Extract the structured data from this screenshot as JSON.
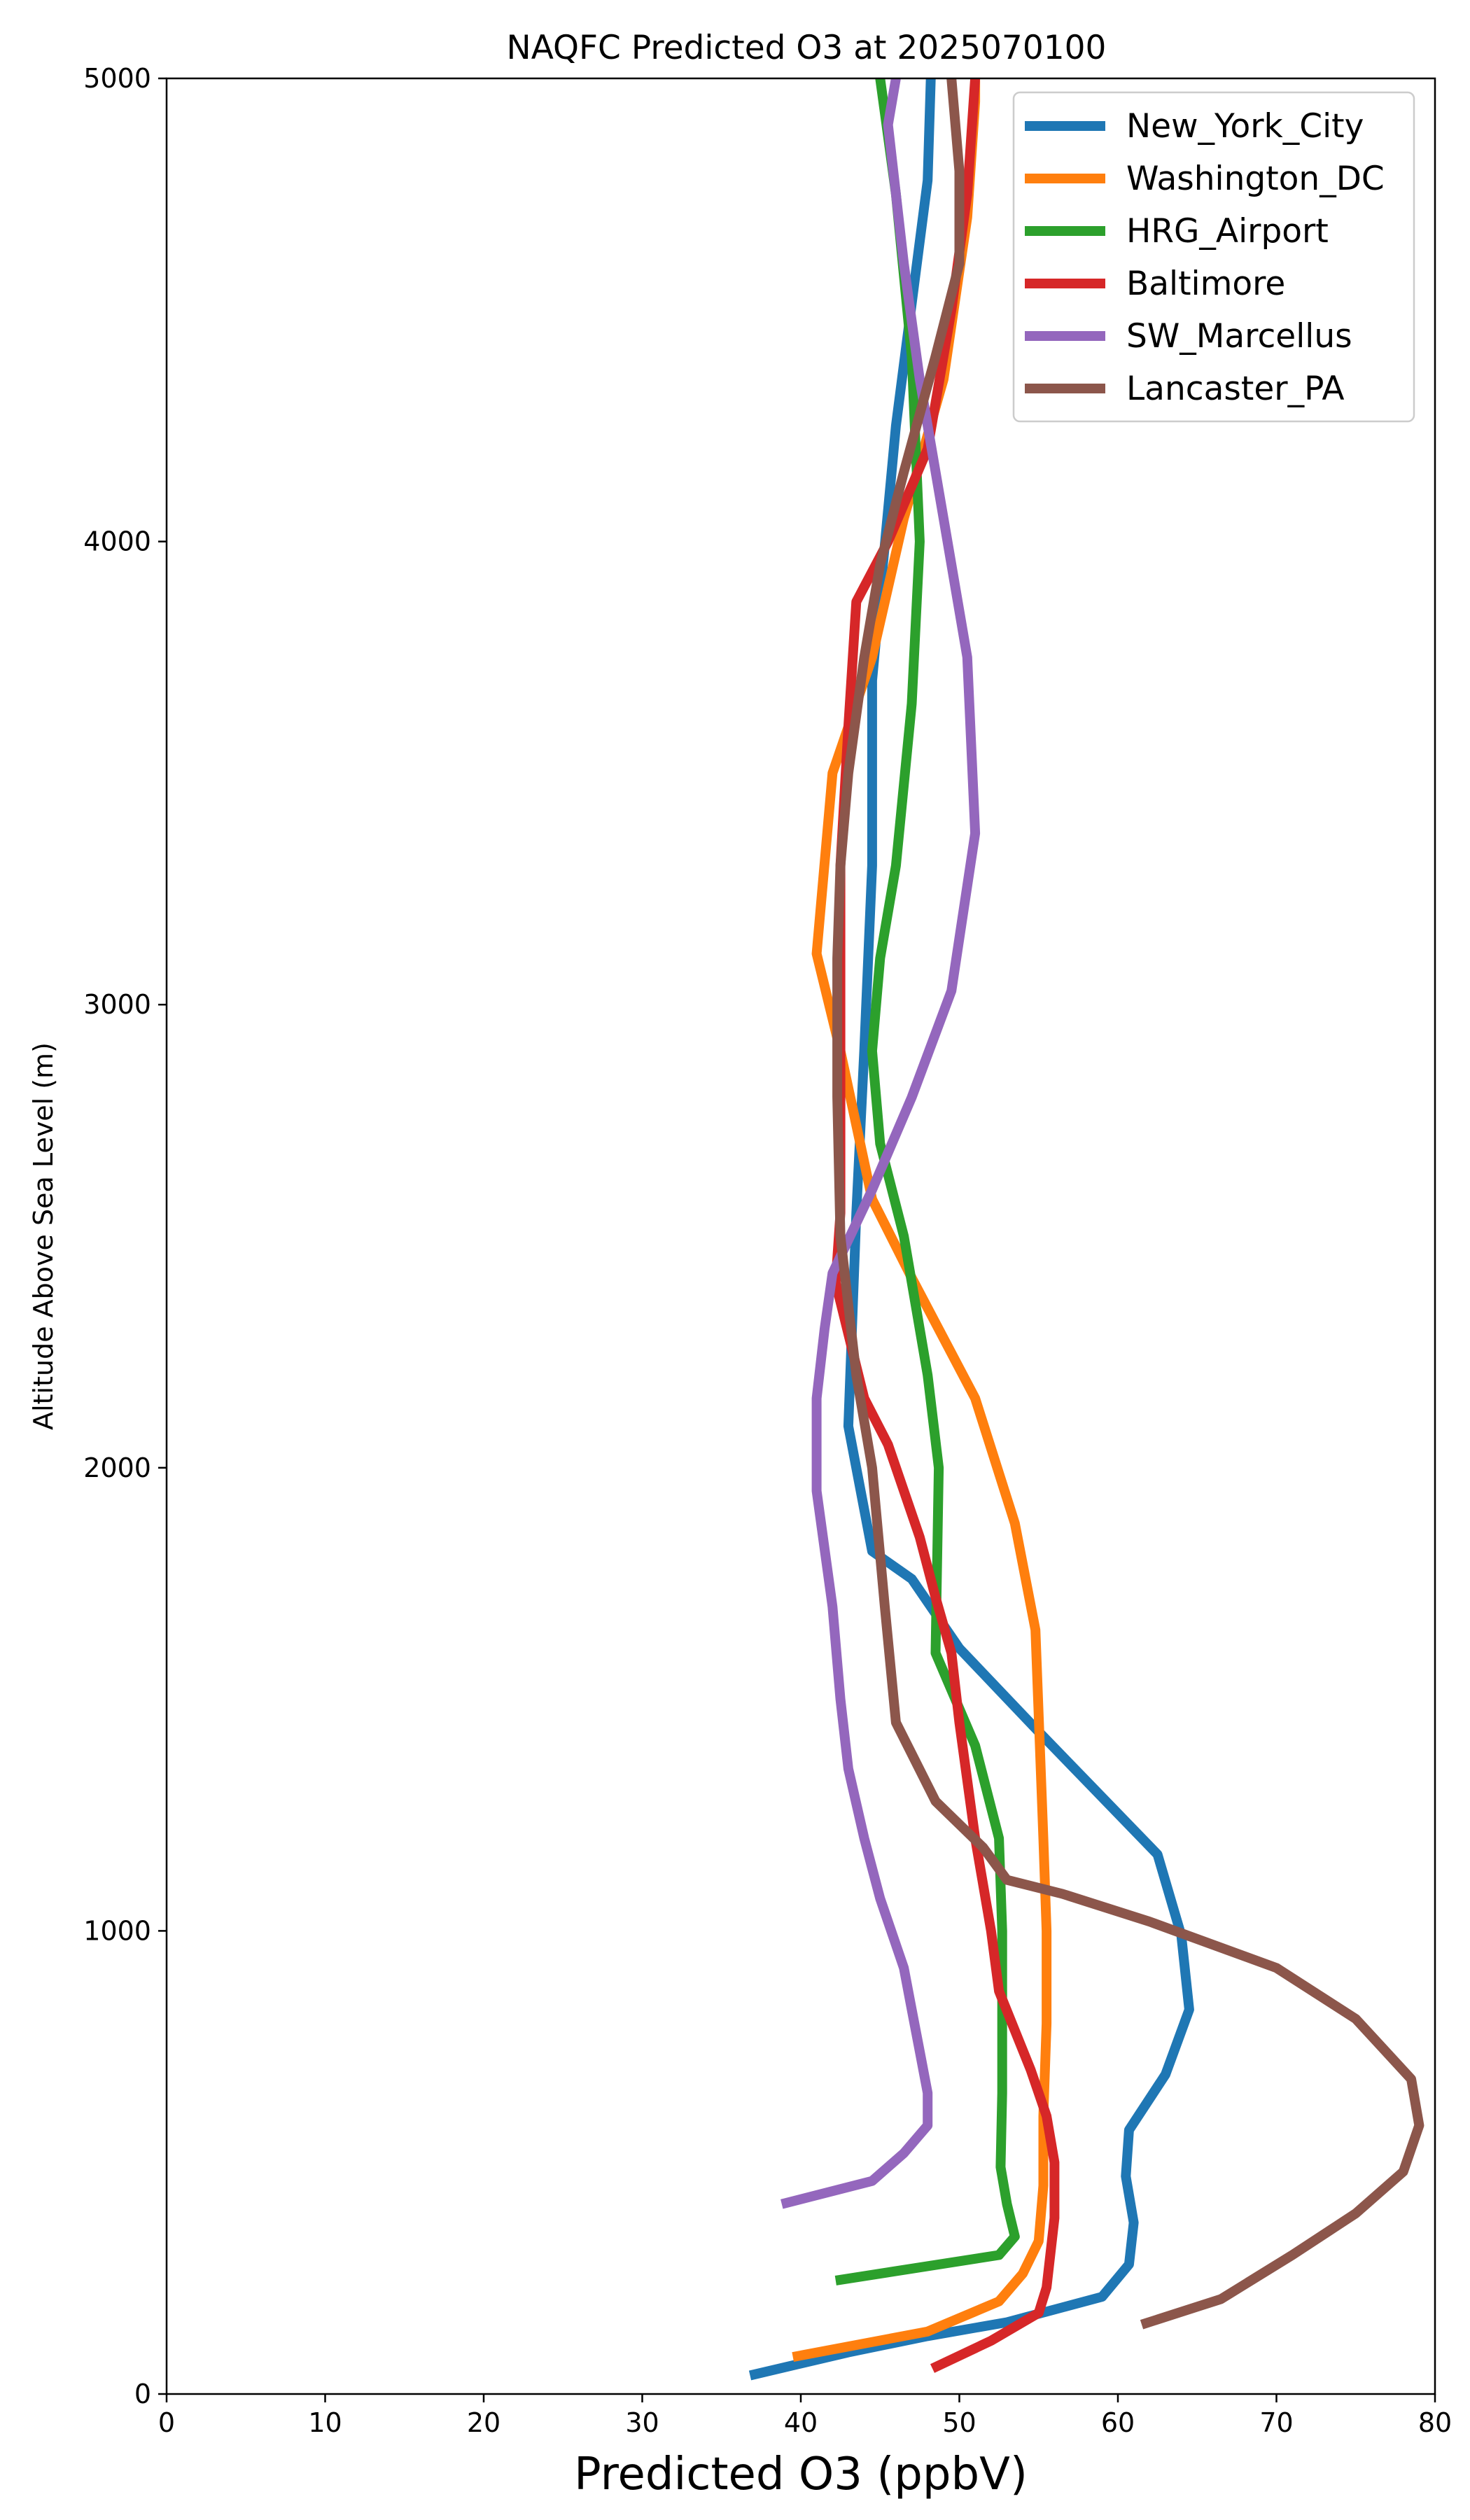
{
  "chart_data": {
    "type": "line",
    "title": "NAQFC Predicted O3 at 2025070100",
    "xlabel": "Predicted O3 (ppbV)",
    "ylabel": "Altitude Above Sea Level (m)",
    "xlim": [
      0,
      80
    ],
    "ylim": [
      0,
      5000
    ],
    "xticks": [
      "0",
      "10",
      "20",
      "30",
      "40",
      "50",
      "60",
      "70",
      "80"
    ],
    "yticks": [
      "0",
      "1000",
      "2000",
      "3000",
      "4000",
      "5000"
    ],
    "grid": false,
    "legend_position": "top-right",
    "series": [
      {
        "name": "New_York_City",
        "color": "#1f77b4",
        "points": [
          [
            36.8,
            40
          ],
          [
            43.0,
            90
          ],
          [
            48.0,
            125
          ],
          [
            53.0,
            155
          ],
          [
            59.0,
            210
          ],
          [
            60.7,
            280
          ],
          [
            61.0,
            370
          ],
          [
            60.5,
            470
          ],
          [
            60.7,
            570
          ],
          [
            63.0,
            690
          ],
          [
            64.5,
            830
          ],
          [
            64.0,
            990
          ],
          [
            62.5,
            1165
          ],
          [
            55.0,
            1430
          ],
          [
            50.0,
            1610
          ],
          [
            47.0,
            1760
          ],
          [
            44.5,
            1820
          ],
          [
            43.0,
            2090
          ],
          [
            43.5,
            2550
          ],
          [
            44.0,
            2900
          ],
          [
            44.5,
            3300
          ],
          [
            44.5,
            3700
          ],
          [
            46.0,
            4250
          ],
          [
            48.0,
            4780
          ],
          [
            48.2,
            5000
          ]
        ]
      },
      {
        "name": "Washington_DC",
        "color": "#ff7f0e",
        "points": [
          [
            39.5,
            80
          ],
          [
            48.0,
            135
          ],
          [
            52.5,
            200
          ],
          [
            54.0,
            260
          ],
          [
            55.0,
            330
          ],
          [
            55.3,
            450
          ],
          [
            55.3,
            600
          ],
          [
            55.5,
            800
          ],
          [
            55.5,
            1000
          ],
          [
            55.3,
            1200
          ],
          [
            54.8,
            1650
          ],
          [
            53.5,
            1880
          ],
          [
            51.0,
            2150
          ],
          [
            47.0,
            2410
          ],
          [
            44.5,
            2580
          ],
          [
            42.5,
            2900
          ],
          [
            41.0,
            3110
          ],
          [
            42.0,
            3500
          ],
          [
            44.5,
            3750
          ],
          [
            46.5,
            4050
          ],
          [
            49.0,
            4350
          ],
          [
            50.5,
            4700
          ],
          [
            51.0,
            4950
          ],
          [
            51.0,
            5000
          ]
        ]
      },
      {
        "name": "HRG_Airport",
        "color": "#2ca02c",
        "points": [
          [
            42.2,
            245
          ],
          [
            52.5,
            300
          ],
          [
            53.5,
            340
          ],
          [
            53.0,
            410
          ],
          [
            52.6,
            490
          ],
          [
            52.7,
            650
          ],
          [
            52.7,
            1000
          ],
          [
            52.5,
            1200
          ],
          [
            51.0,
            1400
          ],
          [
            48.5,
            1600
          ],
          [
            48.7,
            2000
          ],
          [
            48.0,
            2200
          ],
          [
            46.5,
            2500
          ],
          [
            45.0,
            2700
          ],
          [
            44.5,
            2900
          ],
          [
            45.0,
            3100
          ],
          [
            46.0,
            3300
          ],
          [
            47.0,
            3650
          ],
          [
            47.5,
            4000
          ],
          [
            47.0,
            4400
          ],
          [
            46.0,
            4750
          ],
          [
            45.0,
            5000
          ]
        ]
      },
      {
        "name": "Baltimore",
        "color": "#d62728",
        "points": [
          [
            48.3,
            55
          ],
          [
            52.0,
            115
          ],
          [
            55.0,
            175
          ],
          [
            55.5,
            230
          ],
          [
            56.0,
            380
          ],
          [
            56.0,
            500
          ],
          [
            55.5,
            600
          ],
          [
            54.5,
            700
          ],
          [
            52.5,
            870
          ],
          [
            52.0,
            1000
          ],
          [
            51.0,
            1200
          ],
          [
            50.0,
            1450
          ],
          [
            49.5,
            1600
          ],
          [
            48.5,
            1720
          ],
          [
            47.5,
            1850
          ],
          [
            45.5,
            2050
          ],
          [
            44.0,
            2150
          ],
          [
            42.2,
            2400
          ],
          [
            42.5,
            2550
          ],
          [
            42.5,
            3000
          ],
          [
            42.5,
            3300
          ],
          [
            43.0,
            3600
          ],
          [
            43.5,
            3870
          ],
          [
            45.5,
            4000
          ],
          [
            48.0,
            4200
          ],
          [
            49.5,
            4500
          ],
          [
            50.5,
            4750
          ],
          [
            51.0,
            5000
          ]
        ]
      },
      {
        "name": "SW_Marcellus",
        "color": "#9467bd",
        "points": [
          [
            38.8,
            410
          ],
          [
            44.5,
            460
          ],
          [
            46.5,
            520
          ],
          [
            48.0,
            580
          ],
          [
            48.0,
            650
          ],
          [
            47.5,
            740
          ],
          [
            47.0,
            830
          ],
          [
            46.5,
            920
          ],
          [
            45.0,
            1070
          ],
          [
            44.0,
            1200
          ],
          [
            43.0,
            1350
          ],
          [
            42.5,
            1500
          ],
          [
            42.0,
            1700
          ],
          [
            41.0,
            1950
          ],
          [
            41.0,
            2150
          ],
          [
            41.5,
            2300
          ],
          [
            42.0,
            2420
          ],
          [
            44.5,
            2600
          ],
          [
            47.0,
            2800
          ],
          [
            49.5,
            3030
          ],
          [
            51.0,
            3370
          ],
          [
            50.5,
            3750
          ],
          [
            49.0,
            4050
          ],
          [
            47.5,
            4350
          ],
          [
            46.5,
            4600
          ],
          [
            45.5,
            4900
          ],
          [
            46.0,
            5000
          ]
        ]
      },
      {
        "name": "Lancaster_PA",
        "color": "#8c564b",
        "points": [
          [
            61.5,
            150
          ],
          [
            66.5,
            205
          ],
          [
            71.0,
            300
          ],
          [
            75.0,
            390
          ],
          [
            78.0,
            480
          ],
          [
            79.0,
            580
          ],
          [
            78.5,
            680
          ],
          [
            75.0,
            810
          ],
          [
            70.0,
            920
          ],
          [
            62.0,
            1020
          ],
          [
            56.5,
            1080
          ],
          [
            53.0,
            1110
          ],
          [
            51.5,
            1180
          ],
          [
            48.5,
            1280
          ],
          [
            46.0,
            1450
          ],
          [
            45.3,
            1700
          ],
          [
            44.5,
            2000
          ],
          [
            43.5,
            2200
          ],
          [
            42.5,
            2500
          ],
          [
            42.3,
            2800
          ],
          [
            42.3,
            3100
          ],
          [
            42.5,
            3300
          ],
          [
            43.0,
            3500
          ],
          [
            44.0,
            3750
          ],
          [
            45.0,
            3950
          ],
          [
            46.5,
            4150
          ],
          [
            48.5,
            4400
          ],
          [
            50.0,
            4600
          ],
          [
            50.0,
            4800
          ],
          [
            49.5,
            5000
          ]
        ]
      }
    ]
  }
}
